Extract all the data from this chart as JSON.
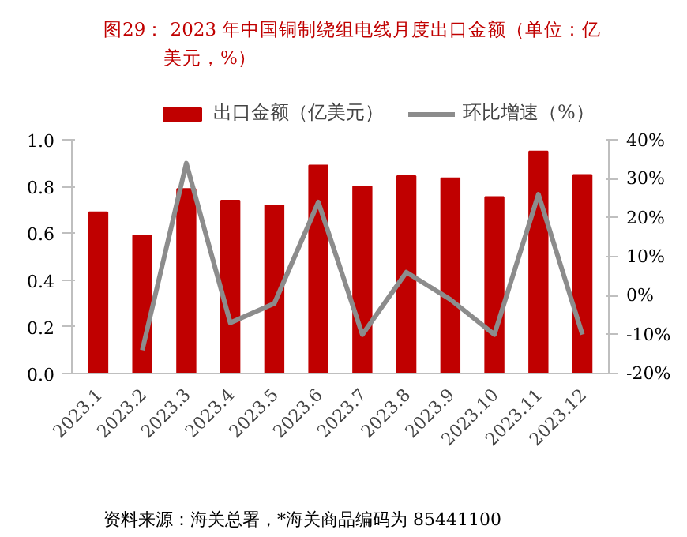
{
  "chart_data": {
    "type": "bar",
    "title": "图29：  2023 年中国铜制绕组电线月度出口金额（单位：亿美元，%）",
    "categories": [
      "2023.1",
      "2023.2",
      "2023.3",
      "2023.4",
      "2023.5",
      "2023.6",
      "2023.7",
      "2023.8",
      "2023.9",
      "2023.10",
      "2023.11",
      "2023.12"
    ],
    "series": [
      {
        "name": "出口金额（亿美元）",
        "color": "#c00000",
        "values": [
          0.69,
          0.59,
          0.79,
          0.74,
          0.72,
          0.89,
          0.8,
          0.845,
          0.835,
          0.755,
          0.95,
          0.85
        ]
      },
      {
        "name": "环比增速（%）",
        "type": "line",
        "axis": "y2",
        "color": "#8c8c8c",
        "values": [
          null,
          -14,
          34,
          -7,
          -2,
          24,
          -10,
          6,
          -1,
          -10,
          26,
          -10
        ]
      }
    ],
    "ylim": [
      0,
      1.0
    ],
    "yticks": [
      {
        "value": 0,
        "label": "0.0"
      },
      {
        "value": 0.2,
        "label": "0.2"
      },
      {
        "value": 0.4,
        "label": "0.4"
      },
      {
        "value": 0.6,
        "label": "0.6"
      },
      {
        "value": 0.8,
        "label": "0.8"
      },
      {
        "value": 1.0,
        "label": "1.0"
      }
    ],
    "y2lim": [
      -20,
      40
    ],
    "y2ticks": [
      {
        "value": -20,
        "label": "-20%"
      },
      {
        "value": -10,
        "label": "-10%"
      },
      {
        "value": 0,
        "label": "0%"
      },
      {
        "value": 10,
        "label": "10%"
      },
      {
        "value": 20,
        "label": "20%"
      },
      {
        "value": 30,
        "label": "30%"
      },
      {
        "value": 40,
        "label": "40%"
      }
    ],
    "legend": "top",
    "grid": false,
    "annotations": [
      "资料来源：海关总署，*海关商品编码为 85441100"
    ]
  }
}
